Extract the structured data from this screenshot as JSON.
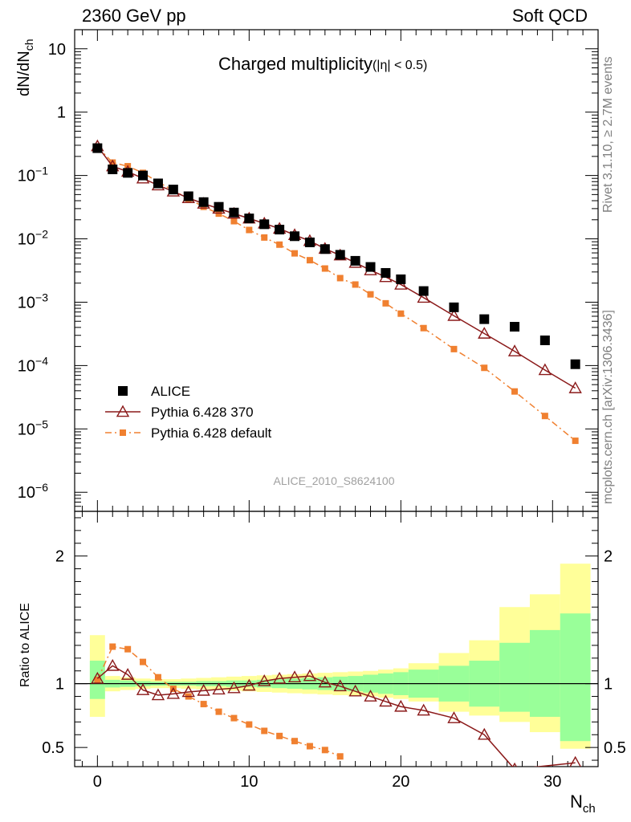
{
  "header": {
    "left": "2360 GeV pp",
    "right": "Soft QCD"
  },
  "side_text": {
    "rivet": "Rivet 3.1.10, ≥ 2.7M events",
    "mcplots": "mcplots.cern.ch [arXiv:1306.3436]"
  },
  "chart_data": [
    {
      "type": "scatter",
      "title": "Charged multiplicity",
      "title_sub": "(|η| < 0.5)",
      "ylabel_main": "dN/dN",
      "ylabel_sub": "ch",
      "yscale": "log",
      "ylim": [
        5e-07,
        20
      ],
      "xlim": [
        -1.5,
        33
      ],
      "yticks": [
        {
          "value": 10,
          "label": "10"
        },
        {
          "value": 1,
          "label": "1"
        },
        {
          "value": 0.1,
          "label": "10",
          "exp": "−1"
        },
        {
          "value": 0.01,
          "label": "10",
          "exp": "−2"
        },
        {
          "value": 0.001,
          "label": "10",
          "exp": "−3"
        },
        {
          "value": 0.0001,
          "label": "10",
          "exp": "−4"
        },
        {
          "value": 1e-05,
          "label": "10",
          "exp": "−5"
        },
        {
          "value": 1e-06,
          "label": "10",
          "exp": "−6"
        }
      ],
      "watermark": "ALICE_2010_S8624100",
      "legend_position": "bottom-left",
      "series": [
        {
          "name": "ALICE",
          "color": "#000000",
          "marker": "square",
          "x": [
            0,
            1,
            2,
            3,
            4,
            5,
            6,
            7,
            8,
            9,
            10,
            11,
            12,
            13,
            14,
            15,
            16,
            17,
            18,
            19,
            20,
            21.5,
            23.5,
            25.5,
            27.5,
            29.5,
            31.5
          ],
          "y": [
            0.27,
            0.125,
            0.11,
            0.1,
            0.075,
            0.06,
            0.047,
            0.038,
            0.032,
            0.026,
            0.021,
            0.017,
            0.014,
            0.011,
            0.0088,
            0.0069,
            0.0056,
            0.0045,
            0.0036,
            0.0029,
            0.0023,
            0.0015,
            0.00083,
            0.00054,
            0.00041,
            0.00025,
            0.000105
          ]
        },
        {
          "name": "Pythia 6.428 370",
          "color": "#8b1a1a",
          "marker": "triangle-open",
          "line": "solid",
          "x": [
            0,
            1,
            2,
            3,
            4,
            5,
            6,
            7,
            8,
            9,
            10,
            11,
            12,
            13,
            14,
            15,
            16,
            17,
            18,
            19,
            20,
            21.5,
            23.5,
            25.5,
            27.5,
            29.5,
            31.5
          ],
          "y": [
            0.29,
            0.14,
            0.115,
            0.09,
            0.07,
            0.056,
            0.044,
            0.036,
            0.03,
            0.025,
            0.021,
            0.0175,
            0.0145,
            0.0115,
            0.0093,
            0.007,
            0.0055,
            0.0042,
            0.0032,
            0.0025,
            0.0019,
            0.00118,
            0.00061,
            0.00032,
            0.000168,
            8.5e-05,
            4.4e-05
          ]
        },
        {
          "name": "Pythia 6.428 default",
          "color": "#f08030",
          "marker": "square-small",
          "line": "dashdot",
          "x": [
            0,
            1,
            2,
            3,
            4,
            5,
            6,
            7,
            8,
            9,
            10,
            11,
            12,
            13,
            14,
            15,
            16,
            17,
            18,
            19,
            20,
            21.5,
            23.5,
            25.5,
            27.5,
            29.5,
            31.5
          ],
          "y": [
            0.285,
            0.16,
            0.14,
            0.11,
            0.079,
            0.058,
            0.043,
            0.032,
            0.025,
            0.019,
            0.0138,
            0.0105,
            0.0081,
            0.0059,
            0.0046,
            0.0034,
            0.0024,
            0.0019,
            0.00133,
            0.00096,
            0.00066,
            0.00039,
            0.000182,
            9.2e-05,
            3.9e-05,
            1.6e-05,
            6.5e-06
          ]
        }
      ]
    },
    {
      "type": "scatter",
      "ylabel": "Ratio to ALICE",
      "xlabel_main": "N",
      "xlabel_sub": "ch",
      "ylim": [
        0.35,
        2.35
      ],
      "xlim": [
        -1.5,
        33
      ],
      "xticks": [
        0,
        10,
        20,
        30
      ],
      "yticks": [
        {
          "value": 0.5,
          "label": "0.5"
        },
        {
          "value": 1,
          "label": "1"
        },
        {
          "value": 2,
          "label": "2"
        }
      ],
      "bands": {
        "edges": [
          -0.5,
          0.5,
          1.5,
          2.5,
          3.5,
          4.5,
          5.5,
          6.5,
          7.5,
          8.5,
          9.5,
          10.5,
          11.5,
          12.5,
          13.5,
          14.5,
          15.5,
          16.5,
          17.5,
          18.5,
          19.5,
          20.5,
          22.5,
          24.5,
          26.5,
          28.5,
          30.5,
          32.5
        ],
        "outer_color": "#ffff99",
        "inner_color": "#99ff99",
        "outer_lo": [
          0.74,
          0.94,
          0.95,
          0.96,
          0.965,
          0.965,
          0.96,
          0.955,
          0.95,
          0.945,
          0.94,
          0.935,
          0.93,
          0.925,
          0.92,
          0.915,
          0.91,
          0.905,
          0.9,
          0.89,
          0.88,
          0.86,
          0.78,
          0.75,
          0.7,
          0.62,
          0.49
        ],
        "outer_hi": [
          1.38,
          1.06,
          1.05,
          1.04,
          1.035,
          1.035,
          1.04,
          1.045,
          1.05,
          1.055,
          1.06,
          1.065,
          1.07,
          1.075,
          1.08,
          1.085,
          1.09,
          1.095,
          1.1,
          1.11,
          1.12,
          1.16,
          1.24,
          1.34,
          1.6,
          1.7,
          1.94
        ],
        "inner_lo": [
          0.88,
          0.97,
          0.975,
          0.98,
          0.985,
          0.985,
          0.985,
          0.98,
          0.98,
          0.975,
          0.975,
          0.97,
          0.965,
          0.96,
          0.955,
          0.95,
          0.945,
          0.94,
          0.93,
          0.92,
          0.91,
          0.89,
          0.86,
          0.82,
          0.78,
          0.74,
          0.55
        ],
        "inner_hi": [
          1.18,
          1.03,
          1.025,
          1.02,
          1.015,
          1.015,
          1.015,
          1.02,
          1.02,
          1.025,
          1.025,
          1.03,
          1.035,
          1.04,
          1.045,
          1.05,
          1.055,
          1.06,
          1.07,
          1.08,
          1.09,
          1.11,
          1.14,
          1.18,
          1.32,
          1.42,
          1.55
        ]
      },
      "series": [
        {
          "name": "Pythia 6.428 370",
          "color": "#8b1a1a",
          "marker": "triangle-open",
          "line": "solid",
          "x": [
            0,
            1,
            2,
            3,
            4,
            5,
            6,
            7,
            8,
            9,
            10,
            11,
            12,
            13,
            14,
            15,
            16,
            17,
            18,
            19,
            20,
            21.5,
            23.5,
            25.5,
            27.5,
            31.5
          ],
          "y": [
            1.04,
            1.14,
            1.07,
            0.95,
            0.91,
            0.92,
            0.935,
            0.945,
            0.955,
            0.965,
            0.985,
            1.02,
            1.04,
            1.05,
            1.06,
            1.01,
            0.98,
            0.94,
            0.9,
            0.86,
            0.82,
            0.79,
            0.73,
            0.6,
            0.33,
            0.38
          ]
        },
        {
          "name": "Pythia 6.428 default",
          "color": "#f08030",
          "marker": "square-small",
          "line": "dashdot",
          "x": [
            0,
            1,
            2,
            3,
            4,
            5,
            6,
            7,
            8,
            9,
            10,
            11,
            12,
            13,
            14,
            15,
            16
          ],
          "y": [
            1.03,
            1.29,
            1.27,
            1.17,
            1.05,
            0.96,
            0.9,
            0.84,
            0.78,
            0.73,
            0.68,
            0.63,
            0.59,
            0.55,
            0.51,
            0.48,
            0.43
          ]
        }
      ]
    }
  ]
}
